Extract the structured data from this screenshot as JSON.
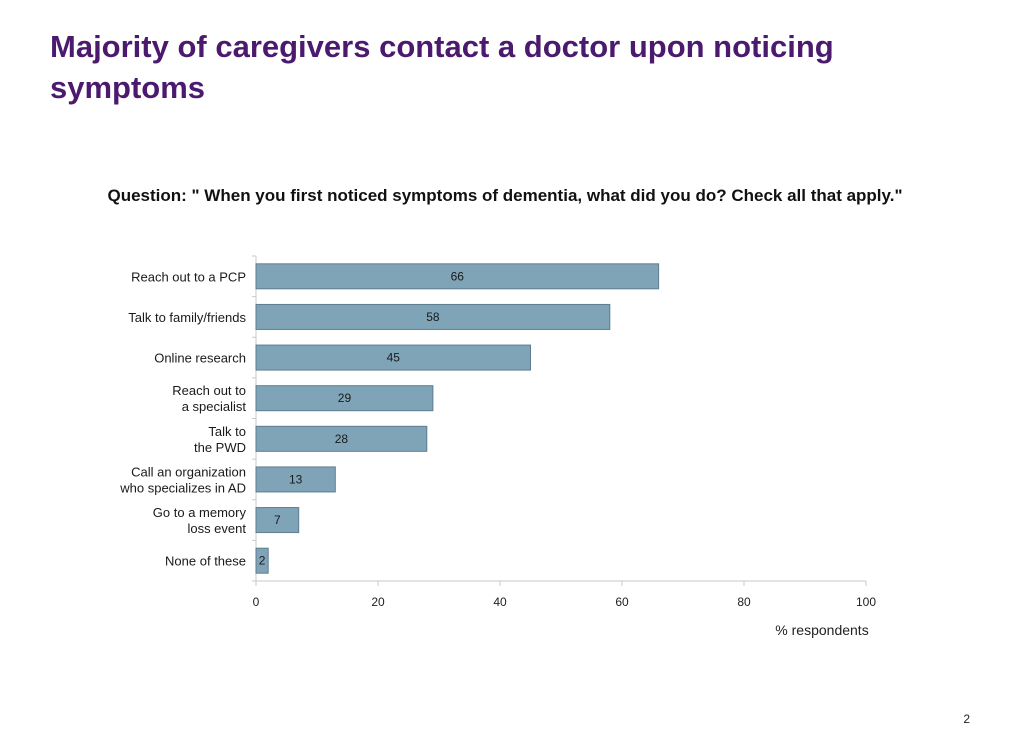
{
  "slide": {
    "title": "Majority of caregivers contact a doctor upon noticing symptoms",
    "page_number": "2"
  },
  "chart_data": {
    "type": "bar",
    "orientation": "horizontal",
    "title": "Question: \" When you first noticed symptoms of dementia, what did you do?  Check all that apply.\"",
    "xlabel": "% respondents",
    "ylabel": "",
    "xlim": [
      0,
      100
    ],
    "xticks": [
      0,
      20,
      40,
      60,
      80,
      100
    ],
    "categories": [
      [
        "Reach out to a PCP"
      ],
      [
        "Talk to family/friends"
      ],
      [
        "Online research"
      ],
      [
        "Reach out to",
        "a specialist"
      ],
      [
        "Talk to",
        "the PWD"
      ],
      [
        "Call an organization",
        "who specializes in AD"
      ],
      [
        "Go to a memory",
        "loss event"
      ],
      [
        "None of these"
      ]
    ],
    "values": [
      66,
      58,
      45,
      29,
      28,
      13,
      7,
      2
    ],
    "bar_color": "#7fa4b8",
    "bar_edge_color": "#5f7d8e",
    "grid": false,
    "data_labels": true
  }
}
